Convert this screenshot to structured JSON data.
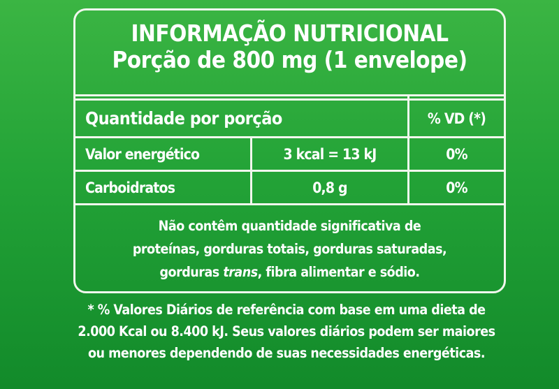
{
  "title": "INFORMAÇÃO NUTRICIONAL",
  "subtitle": "Porção de 800 mg (1 envelope)",
  "table": {
    "header": {
      "quantity": "Quantidade por porção",
      "dv": "% VD (*)"
    },
    "rows": [
      {
        "nutrient": "Valor energético",
        "amount": "3 kcal = 13 kJ",
        "dv": "0%"
      },
      {
        "nutrient": "Carboidratos",
        "amount": "0,8 g",
        "dv": "0%"
      }
    ]
  },
  "notes": {
    "line1": "Não contêm quantidade significativa de",
    "line2": "proteínas, gorduras totais, gorduras saturadas,",
    "line3_pre": "gorduras ",
    "line3_italic": "trans",
    "line3_post": ", fibra alimentar e sódio."
  },
  "footnote": {
    "line1": "* % Valores Diários de referência com base em uma dieta de",
    "line2": "2.000 Kcal ou 8.400 kJ. Seus valores diários podem ser maiores",
    "line3": "ou menores dependendo de suas necessidades energéticas."
  },
  "colors": {
    "background_top": "#3bb543",
    "background_bottom": "#128a2a",
    "lines": "#f2f7ee"
  }
}
